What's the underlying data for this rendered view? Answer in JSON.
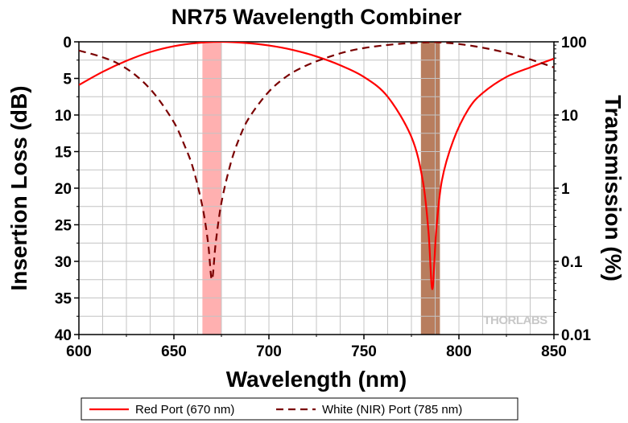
{
  "chart_data": {
    "type": "line",
    "title": "NR75 Wavelength Combiner",
    "xlabel": "Wavelength (nm)",
    "ylabel": "Insertion Loss (dB)",
    "y2label": "Transmission (%)",
    "xlim": [
      600,
      850
    ],
    "ylim": [
      40,
      0
    ],
    "y2lim": [
      0.01,
      100
    ],
    "y2scale": "log",
    "grid": true,
    "legend_position": "bottom",
    "x_ticks": [
      "600",
      "650",
      "700",
      "750",
      "800",
      "850"
    ],
    "y_ticks": [
      "0",
      "5",
      "10",
      "15",
      "20",
      "25",
      "30",
      "35",
      "40"
    ],
    "y2_ticks": [
      "100",
      "10",
      "1",
      "0.1",
      "0.01"
    ],
    "watermark": "THORLABS",
    "bands": [
      {
        "range": [
          665,
          675
        ],
        "color": "#ffb0b0"
      },
      {
        "range": [
          780,
          790
        ],
        "color": "#b87d5e"
      }
    ],
    "series": [
      {
        "name": "Red Port (670 nm)",
        "style": "solid",
        "color": "#ff0000",
        "x": [
          600,
          612.5,
          625,
          637.5,
          650,
          662.5,
          675,
          687.5,
          700,
          712.5,
          725,
          737.5,
          750,
          762.5,
          775,
          781,
          784,
          786,
          788,
          791,
          797,
          805,
          812.5,
          825,
          837.5,
          850
        ],
        "y": [
          5.9,
          4.1,
          2.6,
          1.4,
          0.6,
          0.15,
          0,
          0.15,
          0.5,
          1.1,
          2.0,
          3.2,
          4.8,
          7.5,
          13.0,
          19.0,
          26.0,
          33.8,
          26.0,
          19.0,
          13.5,
          9.2,
          7.0,
          4.8,
          3.5,
          2.3
        ]
      },
      {
        "name": "White (NIR) Port (785 nm)",
        "style": "dashed",
        "color": "#7a0000",
        "x": [
          600,
          610,
          620,
          630,
          640,
          650,
          655,
          660,
          665,
          668,
          670,
          672,
          675,
          680,
          685,
          690,
          700,
          710,
          720,
          730,
          740,
          750,
          760,
          770,
          780,
          785,
          790,
          800,
          812.5,
          825,
          837.5,
          850
        ],
        "y": [
          1.2,
          1.9,
          2.9,
          4.6,
          7.2,
          11.0,
          13.8,
          17.2,
          22.5,
          27.5,
          32.5,
          27.5,
          22.0,
          16.5,
          12.8,
          10.2,
          6.8,
          4.6,
          3.2,
          2.2,
          1.4,
          0.85,
          0.5,
          0.25,
          0.1,
          0.05,
          0.08,
          0.3,
          0.8,
          1.5,
          2.4,
          3.5
        ]
      }
    ]
  }
}
